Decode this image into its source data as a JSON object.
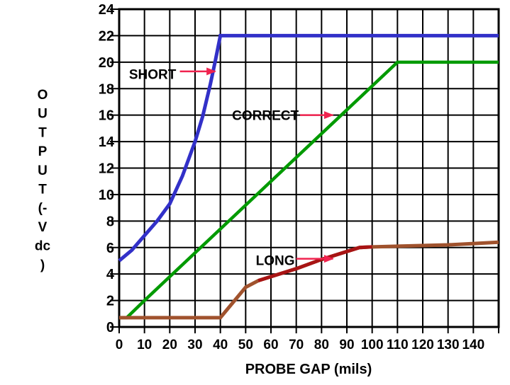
{
  "chart_data": {
    "type": "line",
    "title": "",
    "xlabel": "PROBE GAP (mils)",
    "ylabel": "OUTPUT (-V dc)",
    "ylabel_stack": [
      "O",
      "U",
      "T",
      "P",
      "U",
      "T",
      "(-",
      "V",
      "dc",
      ")"
    ],
    "xlim": [
      0,
      150
    ],
    "ylim": [
      0,
      24
    ],
    "x_gridline_step": 10,
    "y_gridline_step": 2,
    "grid": true,
    "legend_position": "inline-annotations",
    "x_tick_labels": [
      0,
      10,
      20,
      30,
      40,
      50,
      60,
      70,
      80,
      90,
      100,
      110,
      120,
      130,
      140
    ],
    "y_tick_labels": [
      24,
      22,
      20,
      18,
      16,
      14,
      12,
      10,
      8,
      6,
      4,
      2,
      0
    ],
    "axis_color": "#000000",
    "background_color": "#FFFFFF",
    "annotation_arrow_color": "#F0234F",
    "series": [
      {
        "name": "SHORT",
        "color": "#3230C8",
        "line_width": 5,
        "points": [
          [
            0,
            5
          ],
          [
            5,
            5.8
          ],
          [
            10,
            6.9
          ],
          [
            15,
            8.0
          ],
          [
            20,
            9.3
          ],
          [
            25,
            11.4
          ],
          [
            30,
            14
          ],
          [
            33,
            15.9
          ],
          [
            36,
            18.3
          ],
          [
            38,
            20.1
          ],
          [
            40,
            22
          ],
          [
            150,
            22
          ]
        ]
      },
      {
        "name": "CORRECT",
        "color": "#009A00",
        "line_width": 4.5,
        "points": [
          [
            0,
            0.7
          ],
          [
            3,
            0.7
          ],
          [
            10,
            2
          ],
          [
            30,
            5.6
          ],
          [
            50,
            9.2
          ],
          [
            70,
            12.8
          ],
          [
            90,
            16.4
          ],
          [
            100,
            18.2
          ],
          [
            110,
            20
          ],
          [
            150,
            20
          ]
        ]
      },
      {
        "name": "LONG",
        "color": "#A0522D",
        "line_width": 5,
        "points": [
          [
            0,
            0.7
          ],
          [
            40,
            0.7
          ],
          [
            50,
            3
          ],
          [
            55,
            3.5
          ],
          [
            60,
            3.8
          ],
          [
            70,
            4.4
          ],
          [
            80,
            5.1
          ],
          [
            95,
            6
          ],
          [
            100,
            6.05
          ],
          [
            110,
            6.1
          ],
          [
            130,
            6.2
          ],
          [
            150,
            6.4
          ]
        ],
        "color_overrides": [
          {
            "from_x": 55,
            "to_x": 100,
            "color": "#A81414"
          }
        ]
      }
    ],
    "annotations": [
      {
        "text": "SHORT",
        "label_at": [
          13.2,
          19.1
        ],
        "arrow_from": [
          24.0,
          19.3
        ],
        "arrow_to": [
          38.0,
          19.3
        ]
      },
      {
        "text": "CORRECT",
        "label_at": [
          57.8,
          16.0
        ],
        "arrow_from": [
          71.5,
          16.0
        ],
        "arrow_to": [
          84.5,
          16.0
        ]
      },
      {
        "text": "LONG",
        "label_at": [
          61.7,
          5.05
        ],
        "arrow_from": [
          70.0,
          5.15
        ],
        "arrow_to": [
          84.5,
          5.15
        ]
      }
    ]
  }
}
